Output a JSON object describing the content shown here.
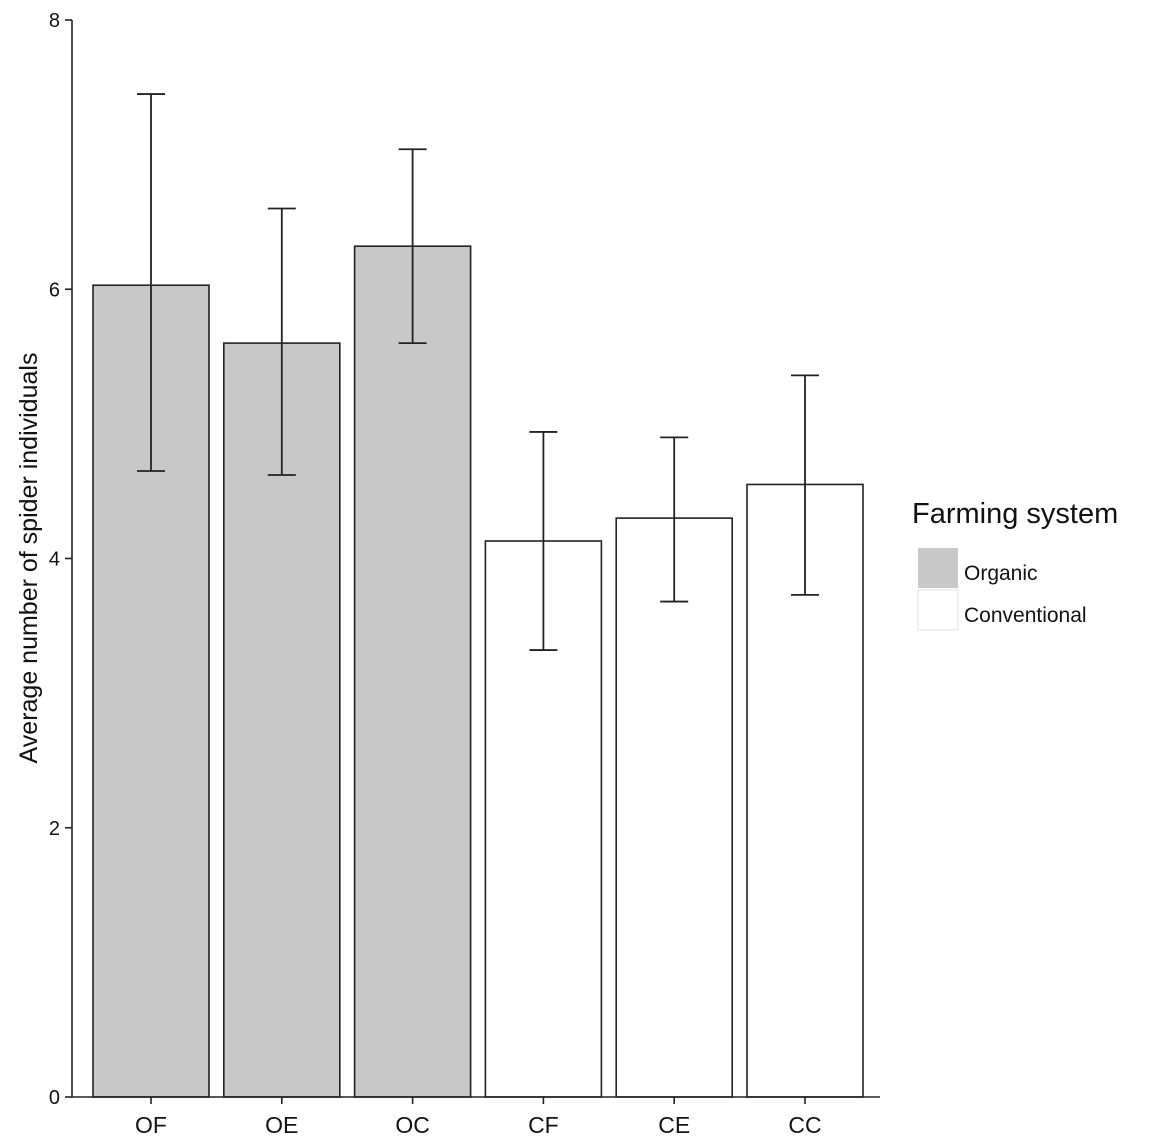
{
  "chart_data": {
    "type": "bar",
    "categories": [
      "OF",
      "OE",
      "OC",
      "CF",
      "CE",
      "CC"
    ],
    "values": [
      6.03,
      5.6,
      6.32,
      4.13,
      4.3,
      4.55
    ],
    "error_low": [
      4.65,
      4.62,
      5.6,
      3.32,
      3.68,
      3.73
    ],
    "error_high": [
      7.45,
      6.6,
      7.04,
      4.94,
      4.9,
      5.36
    ],
    "groups": [
      "Organic",
      "Organic",
      "Organic",
      "Conventional",
      "Conventional",
      "Conventional"
    ],
    "ylabel": "Average number of spider individuals",
    "xlabel": "",
    "ylim": [
      0,
      8
    ],
    "yticks": [
      0,
      2,
      4,
      6,
      8
    ],
    "grid": false,
    "legend": {
      "title": "Farming system",
      "position": "right",
      "entries": [
        {
          "label": "Organic",
          "color": "#c8c8c8"
        },
        {
          "label": "Conventional",
          "color": "#ffffff"
        }
      ]
    },
    "colors": {
      "Organic": "#c8c8c8",
      "Conventional": "#ffffff",
      "outline": "#222222"
    }
  }
}
